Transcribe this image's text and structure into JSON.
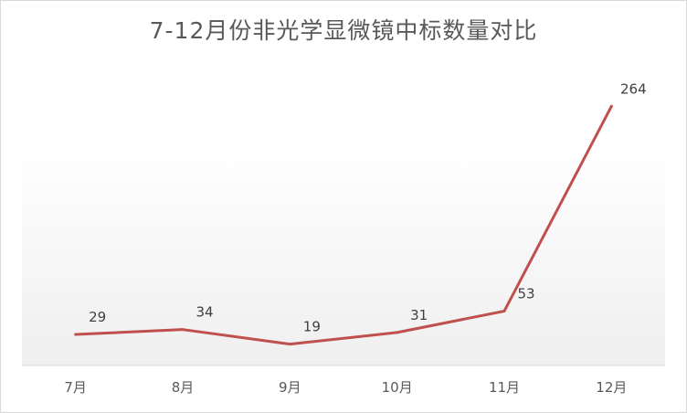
{
  "chart_data": {
    "type": "line",
    "title": "7-12月份非光学显微镜中标数量对比",
    "categories": [
      "7月",
      "8月",
      "9月",
      "10月",
      "11月",
      "12月"
    ],
    "series": [
      {
        "values": [
          29,
          34,
          19,
          31,
          53,
          264
        ]
      }
    ],
    "data_labels": [
      "29",
      "34",
      "19",
      "31",
      "53",
      "264"
    ],
    "ylim": [
      -3,
      284
    ],
    "grid": false,
    "legend": "none",
    "line_color": "#c0504d",
    "xlabel": "",
    "ylabel": ""
  }
}
